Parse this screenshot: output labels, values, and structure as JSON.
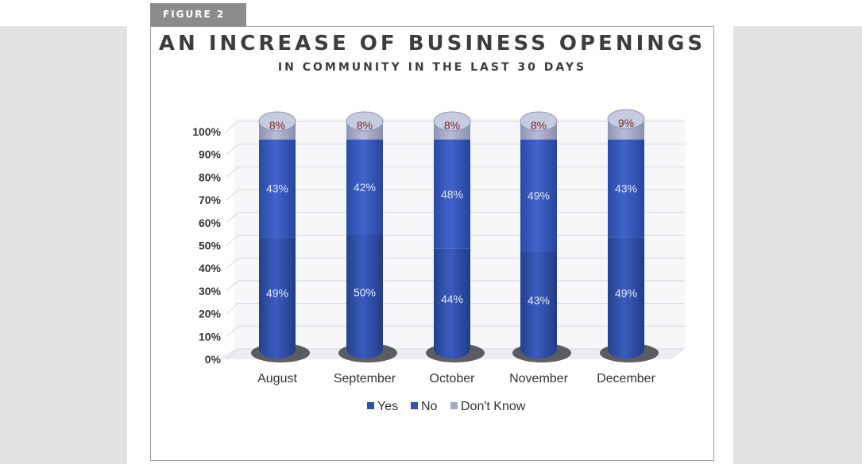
{
  "figure_label": "FIGURE 2",
  "chart_data": {
    "type": "bar",
    "stacked": true,
    "title": "AN INCREASE OF BUSINESS OPENINGS",
    "subtitle": "IN COMMUNITY IN THE LAST 30 DAYS",
    "categories": [
      "August",
      "September",
      "October",
      "November",
      "December"
    ],
    "series": [
      {
        "name": "Yes",
        "values": [
          49,
          50,
          44,
          43,
          49
        ],
        "labels": [
          "49%",
          "50%",
          "44%",
          "43%",
          "49%"
        ],
        "color": "#2f4f9e",
        "label_color": "#e8ecf8"
      },
      {
        "name": "No",
        "values": [
          43,
          42,
          48,
          49,
          43
        ],
        "labels": [
          "43%",
          "42%",
          "48%",
          "49%",
          "43%"
        ],
        "color": "#3553b0",
        "label_color": "#dfe5f6"
      },
      {
        "name": "Don't Know",
        "values": [
          8,
          8,
          8,
          8,
          9
        ],
        "labels": [
          "8%",
          "8%",
          "8%",
          "8%",
          "9%"
        ],
        "color": "#a6abc8",
        "label_color": "#7a2a2a"
      }
    ],
    "ylim": [
      0,
      100
    ],
    "y_ticks": [
      "0%",
      "10%",
      "20%",
      "30%",
      "40%",
      "50%",
      "60%",
      "70%",
      "80%",
      "90%",
      "100%"
    ],
    "grid": true,
    "legend": "bottom"
  }
}
